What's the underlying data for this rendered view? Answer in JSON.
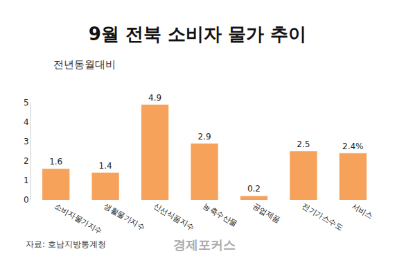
{
  "chart_data": {
    "type": "bar",
    "title": "9월 전북 소비자 물가 추이",
    "subtitle": "전년동월대비",
    "categories": [
      "소비자물가지수",
      "생활물가지수",
      "신선식품지수",
      "농축수산물",
      "공업제품",
      "전기가스수도",
      "서비스"
    ],
    "values": [
      1.6,
      1.4,
      4.9,
      2.9,
      0.2,
      2.5,
      2.4
    ],
    "value_labels": [
      "1.6",
      "1.4",
      "4.9",
      "2.9",
      "0.2",
      "2.5",
      "2.4%"
    ],
    "color": "#f7a25a",
    "ylim": [
      0,
      5
    ],
    "yticks": [
      0,
      1,
      2,
      3,
      4,
      5
    ],
    "grid": false,
    "data_labels": true,
    "annotations": [
      "자료: 호남지방통계청",
      "경제포커스"
    ]
  }
}
